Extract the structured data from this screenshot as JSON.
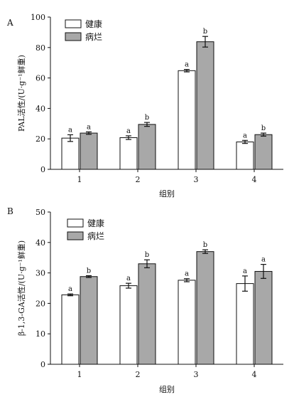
{
  "chart_data": [
    {
      "type": "bar",
      "panel_label": "A",
      "categories": [
        "1",
        "2",
        "3",
        "4"
      ],
      "xlabel": "组别",
      "ylabel": "PAL活性/(U·g⁻¹鲜重)",
      "ylim": [
        0,
        100
      ],
      "yticks": [
        0,
        20,
        40,
        60,
        80,
        100
      ],
      "legend_position": "top-left",
      "series": [
        {
          "name": "健康",
          "color": "#ffffff",
          "values": [
            20.5,
            20.8,
            64.8,
            18.0
          ],
          "errors": [
            2.2,
            1.2,
            0.8,
            1.0
          ],
          "sig": [
            "a",
            "a",
            "a",
            "a"
          ]
        },
        {
          "name": "病烂",
          "color": "#a8a8a8",
          "values": [
            23.8,
            29.5,
            83.8,
            22.8
          ],
          "errors": [
            0.8,
            1.3,
            3.5,
            1.0
          ],
          "sig": [
            "a",
            "b",
            "b",
            "b"
          ]
        }
      ]
    },
    {
      "type": "bar",
      "panel_label": "B",
      "categories": [
        "1",
        "2",
        "3",
        "4"
      ],
      "xlabel": "组别",
      "ylabel": "β-1,3-GA活性/(U·g⁻¹鲜重)",
      "ylim": [
        0,
        50
      ],
      "yticks": [
        0,
        10,
        20,
        30,
        40,
        50
      ],
      "legend_position": "top-left",
      "series": [
        {
          "name": "健康",
          "color": "#ffffff",
          "values": [
            22.8,
            25.8,
            27.6,
            26.5
          ],
          "errors": [
            0.3,
            0.8,
            0.5,
            2.5
          ],
          "sig": [
            "a",
            "a",
            "a",
            "a"
          ]
        },
        {
          "name": "病烂",
          "color": "#a8a8a8",
          "values": [
            28.8,
            33.0,
            37.0,
            30.5
          ],
          "errors": [
            0.3,
            1.3,
            0.6,
            2.3
          ],
          "sig": [
            "b",
            "b",
            "b",
            "a"
          ]
        }
      ]
    }
  ]
}
